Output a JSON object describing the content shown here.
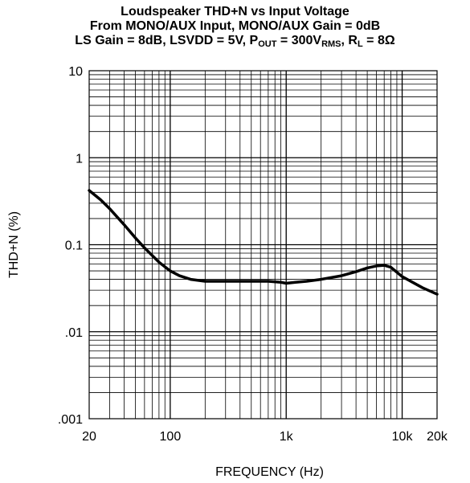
{
  "chart_data": {
    "type": "line",
    "title": {
      "line1": "Loudspeaker THD+N vs Input Voltage",
      "line2": "From MONO/AUX Input, MONO/AUX Gain = 0dB",
      "line3_a": "LS Gain = 8dB, LSVDD = 5V, P",
      "line3_sub1": "OUT",
      "line3_b": " = 300V",
      "line3_sub2": "RMS",
      "line3_c": ", R",
      "line3_sub3": "L",
      "line3_d": " = 8Ω"
    },
    "xlabel": "FREQUENCY (Hz)",
    "ylabel": "THD+N (%)",
    "x_scale": "log",
    "y_scale": "log",
    "xlim": [
      20,
      20000
    ],
    "ylim": [
      0.001,
      10
    ],
    "grid": true,
    "x_ticks": [
      {
        "value": 20,
        "label": "20"
      },
      {
        "value": 100,
        "label": "100"
      },
      {
        "value": 1000,
        "label": "1k"
      },
      {
        "value": 10000,
        "label": "10k"
      },
      {
        "value": 20000,
        "label": "20k"
      }
    ],
    "y_ticks": [
      {
        "value": 10,
        "label": "10"
      },
      {
        "value": 1,
        "label": "1"
      },
      {
        "value": 0.1,
        "label": "0.1"
      },
      {
        "value": 0.01,
        "label": ".01"
      },
      {
        "value": 0.001,
        "label": ".001"
      }
    ],
    "series": [
      {
        "color": "#000000",
        "x": [
          20,
          25,
          30,
          40,
          50,
          60,
          70,
          80,
          100,
          120,
          150,
          200,
          300,
          500,
          700,
          900,
          1000,
          1200,
          1500,
          2000,
          3000,
          4000,
          5000,
          6000,
          7000,
          8000,
          10000,
          15000,
          20000
        ],
        "y": [
          0.42,
          0.33,
          0.26,
          0.17,
          0.12,
          0.092,
          0.075,
          0.063,
          0.05,
          0.044,
          0.04,
          0.038,
          0.038,
          0.038,
          0.038,
          0.037,
          0.036,
          0.037,
          0.038,
          0.04,
          0.044,
          0.049,
          0.054,
          0.057,
          0.058,
          0.055,
          0.043,
          0.032,
          0.027
        ]
      }
    ]
  }
}
